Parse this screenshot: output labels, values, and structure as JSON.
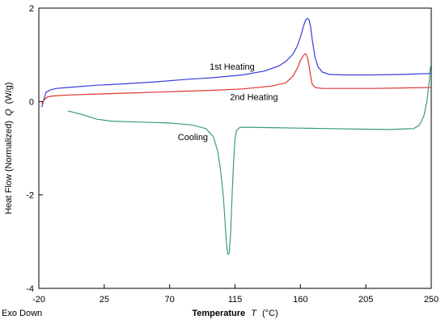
{
  "chart_data": {
    "type": "line",
    "xlabel_main": "Temperature",
    "xlabel_symbol": "T",
    "xlabel_unit": "(°C)",
    "ylabel_main": "Heat Flow (Normalized)",
    "ylabel_symbol": "Q",
    "ylabel_unit": "(W/g)",
    "xlim": [
      -20,
      250
    ],
    "ylim": [
      -4,
      2
    ],
    "x_ticks": [
      -20,
      25,
      70,
      115,
      160,
      205,
      250
    ],
    "x_tick_labels": [
      "-20",
      "25",
      "70",
      "115",
      "160",
      "205",
      "250"
    ],
    "y_ticks": [
      -4,
      -2,
      0,
      2
    ],
    "y_tick_labels": [
      "-4",
      "-2",
      "0",
      "2"
    ],
    "grid": false,
    "footnote": "Exo Down",
    "annotations": [
      {
        "text": "1st Heating",
        "x": 113,
        "y": 0.68
      },
      {
        "text": "2nd Heating",
        "x": 128,
        "y": 0.03
      },
      {
        "text": "Cooling",
        "x": 86,
        "y": -0.83
      }
    ],
    "series": [
      {
        "name": "1st Heating",
        "color": "#3a3adf",
        "x": [
          -18,
          -16,
          -15,
          -12,
          -8,
          0,
          20,
          40,
          60,
          80,
          100,
          120,
          135,
          145,
          150,
          155,
          158,
          160,
          162,
          163,
          164,
          165,
          166,
          167,
          168,
          170,
          172,
          175,
          180,
          190,
          210,
          230,
          250
        ],
        "y": [
          -0.12,
          0.1,
          0.2,
          0.25,
          0.28,
          0.3,
          0.35,
          0.38,
          0.42,
          0.47,
          0.51,
          0.57,
          0.65,
          0.76,
          0.86,
          1.02,
          1.2,
          1.38,
          1.6,
          1.7,
          1.76,
          1.78,
          1.74,
          1.6,
          1.35,
          0.95,
          0.75,
          0.63,
          0.58,
          0.57,
          0.57,
          0.58,
          0.6
        ]
      },
      {
        "name": "2nd Heating",
        "color": "#e03535",
        "x": [
          -18,
          -16,
          -14,
          -10,
          0,
          20,
          40,
          60,
          80,
          100,
          120,
          140,
          150,
          155,
          158,
          160,
          162,
          163,
          164,
          165,
          166,
          167,
          168,
          170,
          175,
          190,
          210,
          230,
          250
        ],
        "y": [
          -0.05,
          0.05,
          0.1,
          0.12,
          0.14,
          0.16,
          0.18,
          0.2,
          0.22,
          0.24,
          0.27,
          0.33,
          0.4,
          0.55,
          0.72,
          0.88,
          0.98,
          1.02,
          1.01,
          0.92,
          0.75,
          0.55,
          0.38,
          0.3,
          0.28,
          0.28,
          0.28,
          0.29,
          0.3
        ]
      },
      {
        "name": "Cooling",
        "color": "#3a9d7a",
        "x": [
          0,
          10,
          20,
          30,
          50,
          70,
          85,
          95,
          100,
          103,
          105,
          107,
          108,
          109,
          110,
          111,
          112,
          113,
          114,
          115,
          116,
          118,
          120,
          140,
          160,
          180,
          200,
          220,
          238,
          242,
          245,
          247,
          248.5,
          249.5
        ],
        "y": [
          -0.2,
          -0.28,
          -0.38,
          -0.42,
          -0.44,
          -0.46,
          -0.5,
          -0.58,
          -0.75,
          -1.05,
          -1.45,
          -2.05,
          -2.5,
          -3.0,
          -3.27,
          -3.25,
          -2.8,
          -2.0,
          -1.3,
          -0.8,
          -0.62,
          -0.56,
          -0.55,
          -0.56,
          -0.57,
          -0.58,
          -0.59,
          -0.6,
          -0.58,
          -0.5,
          -0.3,
          0.0,
          0.4,
          0.75
        ]
      }
    ]
  }
}
